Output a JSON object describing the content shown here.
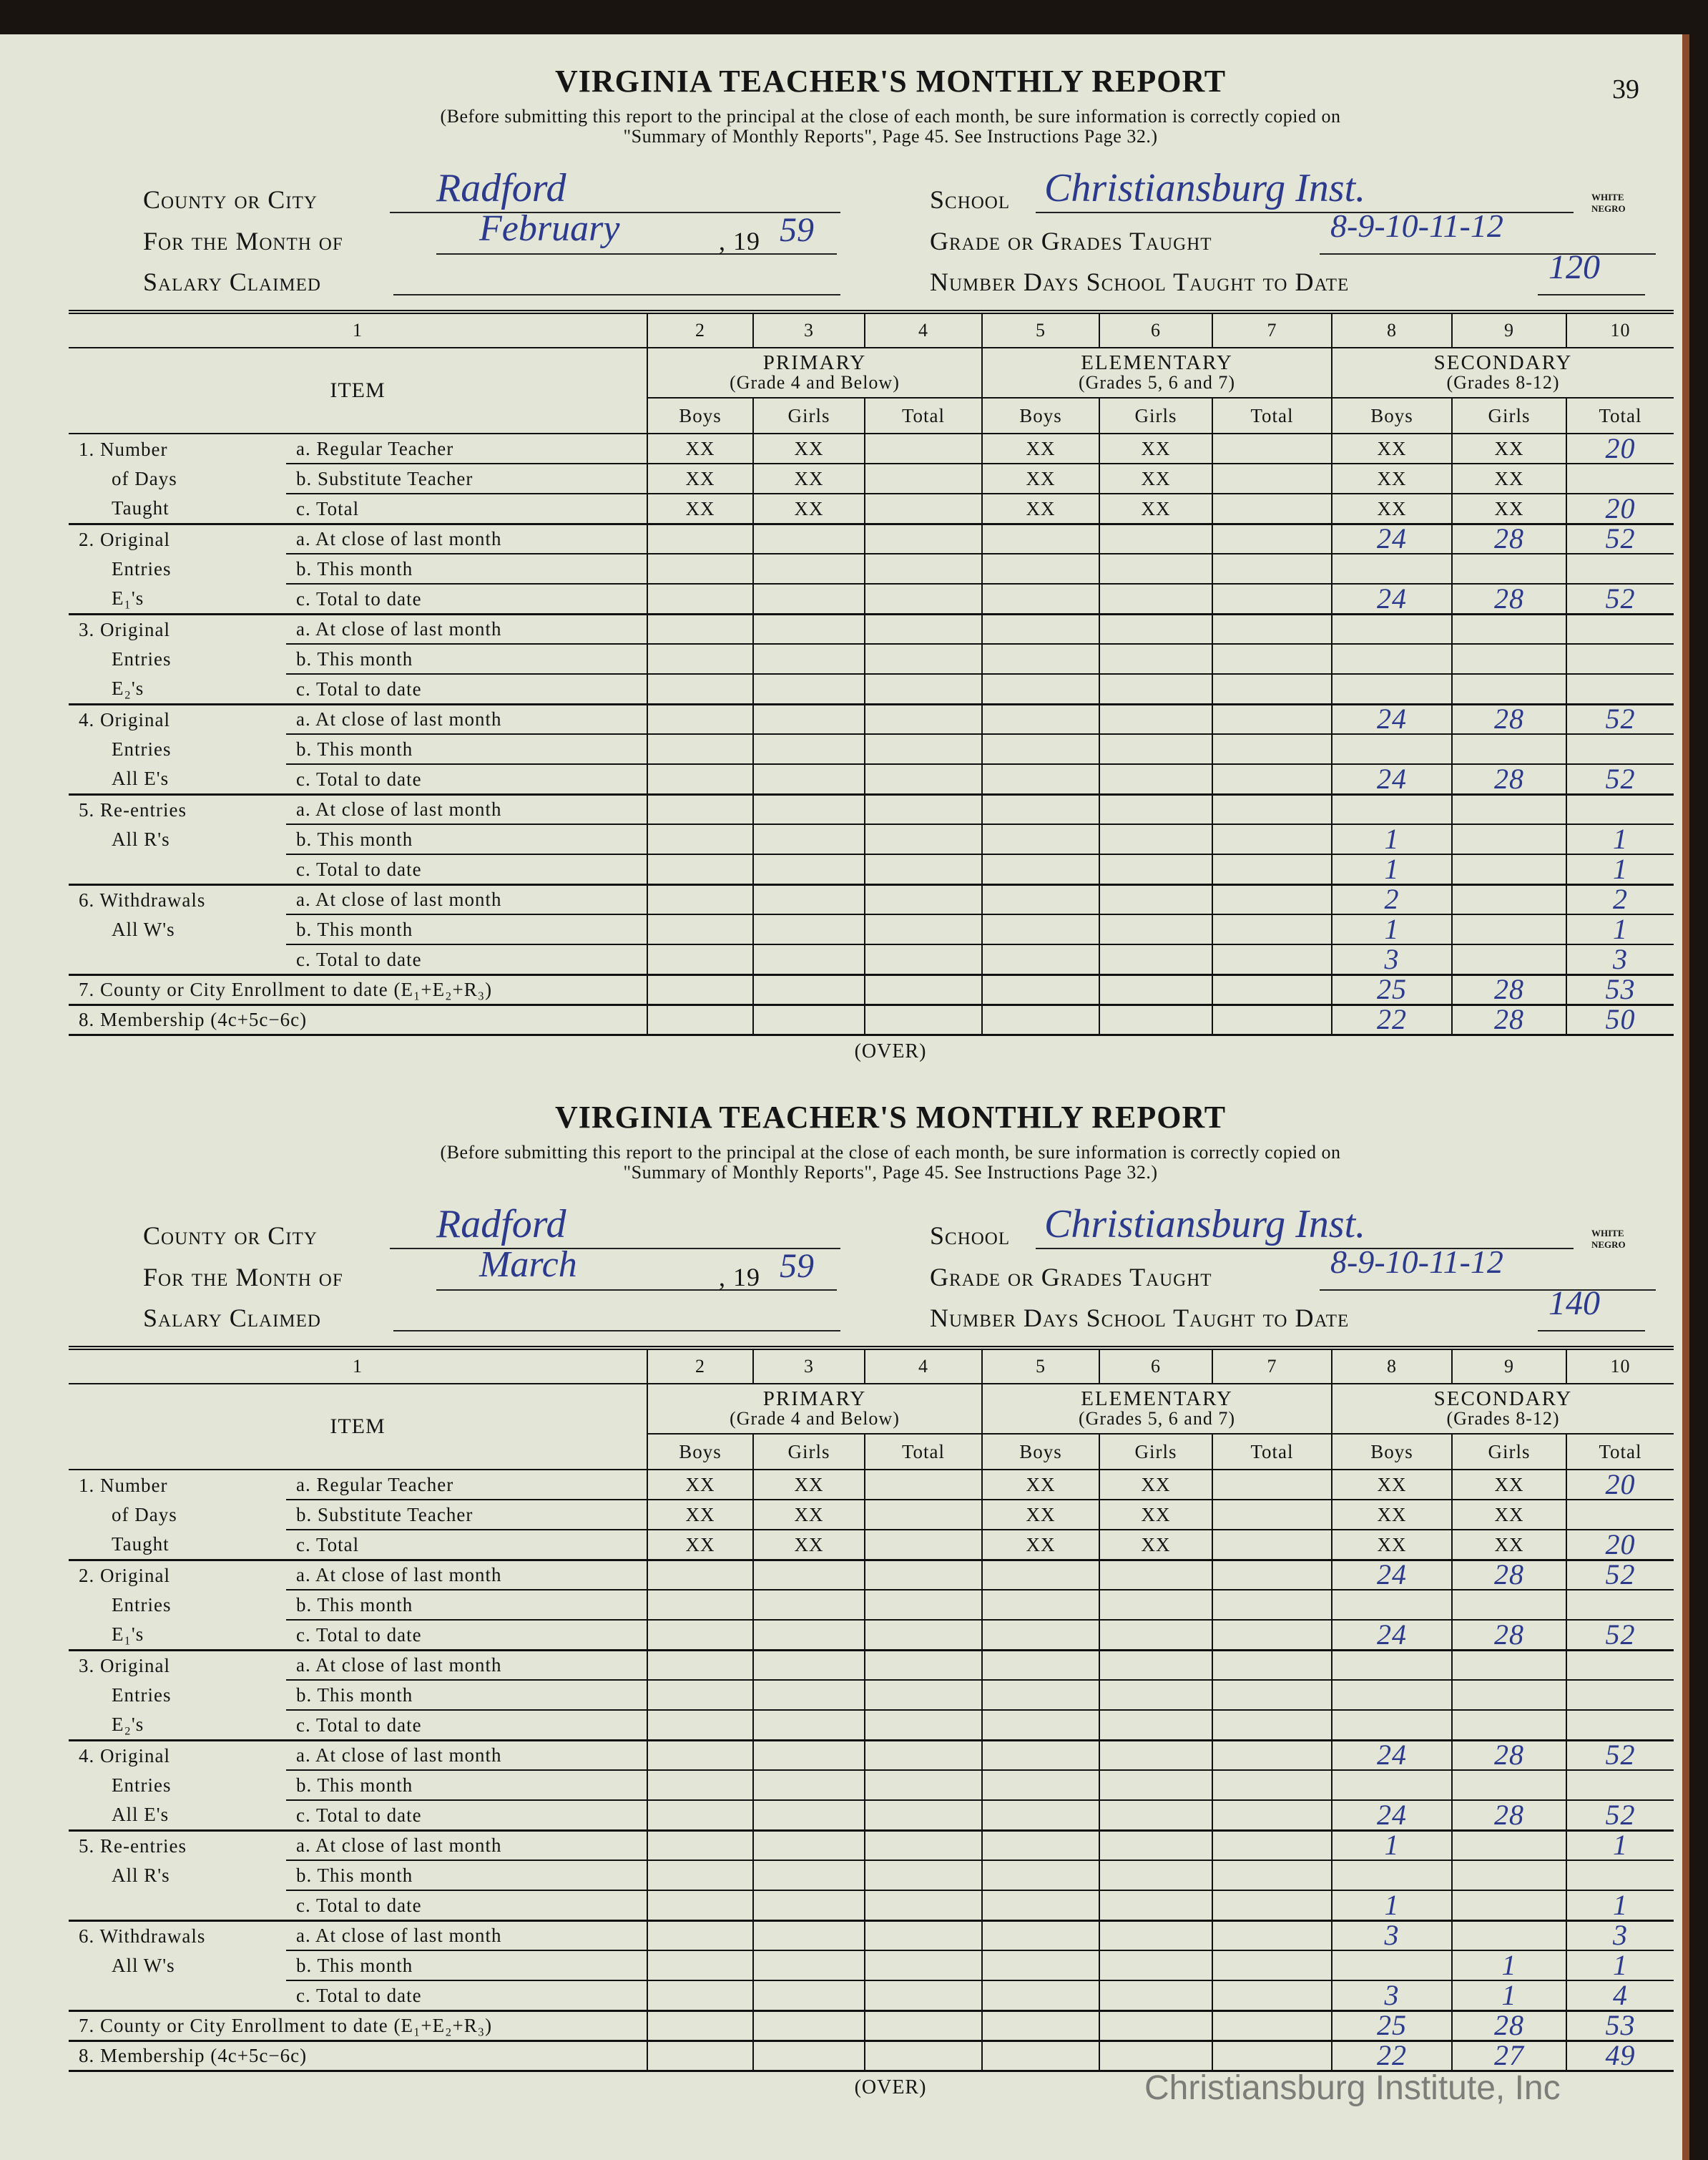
{
  "page_number": "39",
  "watermark": "Christiansburg Institute, Inc",
  "colors": {
    "paper": "#e3e6d6",
    "ink": "#2b3a8c",
    "binding": "#8a4a2c"
  },
  "column_numbers": [
    "1",
    "2",
    "3",
    "4",
    "5",
    "6",
    "7",
    "8",
    "9",
    "10"
  ],
  "item_header": "ITEM",
  "groups": [
    {
      "name": "PRIMARY",
      "sub": "(Grade 4 and Below)"
    },
    {
      "name": "ELEMENTARY",
      "sub": "(Grades 5, 6 and 7)"
    },
    {
      "name": "SECONDARY",
      "sub": "(Grades 8-12)"
    }
  ],
  "subheads": [
    "Boys",
    "Girls",
    "Total"
  ],
  "forms": [
    {
      "title": "VIRGINIA TEACHER'S MONTHLY REPORT",
      "note1": "(Before submitting this report to the principal at the close of each month, be sure information is correctly copied on",
      "note2": "\"Summary of Monthly Reports\", Page 45.  See Instructions Page 32.)",
      "county_label": "County or City",
      "county_value": "Radford",
      "month_label": "For the Month of",
      "month_value": "February",
      "year_prefix": ", 19",
      "year_value": "59",
      "salary_label": "Salary Claimed",
      "salary_value": "",
      "school_label": "School",
      "school_value": "Christiansburg Inst.",
      "race_options": [
        "WHITE",
        "NEGRO"
      ],
      "grades_label": "Grade or Grades Taught",
      "grades_value": "8-9-10-11-12",
      "days_label": "Number Days School Taught to Date",
      "days_value": "120",
      "over": "(OVER)",
      "rows": [
        {
          "group": "1. Number",
          "sub": "a. Regular Teacher",
          "cells": [
            "XX",
            "XX",
            "",
            "XX",
            "XX",
            "",
            "XX",
            "XX",
            "20"
          ]
        },
        {
          "group": "of Days",
          "sub": "b. Substitute Teacher",
          "cells": [
            "XX",
            "XX",
            "",
            "XX",
            "XX",
            "",
            "XX",
            "XX",
            ""
          ]
        },
        {
          "group": "Taught",
          "sub": "c. Total",
          "cells": [
            "XX",
            "XX",
            "",
            "XX",
            "XX",
            "",
            "XX",
            "XX",
            "20"
          ]
        },
        {
          "group": "2. Original",
          "sub": "a. At close of last month",
          "cells": [
            "",
            "",
            "",
            "",
            "",
            "",
            "24",
            "28",
            "52"
          ]
        },
        {
          "group": "Entries",
          "sub": "b. This month",
          "cells": [
            "",
            "",
            "",
            "",
            "",
            "",
            "",
            "",
            ""
          ]
        },
        {
          "group": "E₁'s",
          "sub": "c. Total to date",
          "cells": [
            "",
            "",
            "",
            "",
            "",
            "",
            "24",
            "28",
            "52"
          ]
        },
        {
          "group": "3. Original",
          "sub": "a. At close of last month",
          "cells": [
            "",
            "",
            "",
            "",
            "",
            "",
            "",
            "",
            ""
          ]
        },
        {
          "group": "Entries",
          "sub": "b. This month",
          "cells": [
            "",
            "",
            "",
            "",
            "",
            "",
            "",
            "",
            ""
          ]
        },
        {
          "group": "E₂'s",
          "sub": "c. Total to date",
          "cells": [
            "",
            "",
            "",
            "",
            "",
            "",
            "",
            "",
            ""
          ]
        },
        {
          "group": "4. Original",
          "sub": "a. At close of last month",
          "cells": [
            "",
            "",
            "",
            "",
            "",
            "",
            "24",
            "28",
            "52"
          ]
        },
        {
          "group": "Entries",
          "sub": "b. This month",
          "cells": [
            "",
            "",
            "",
            "",
            "",
            "",
            "",
            "",
            ""
          ]
        },
        {
          "group": "All E's",
          "sub": "c. Total to date",
          "cells": [
            "",
            "",
            "",
            "",
            "",
            "",
            "24",
            "28",
            "52"
          ]
        },
        {
          "group": "5. Re-entries",
          "sub": "a. At close of last month",
          "cells": [
            "",
            "",
            "",
            "",
            "",
            "",
            "",
            "",
            ""
          ]
        },
        {
          "group": "All R's",
          "sub": "b. This month",
          "cells": [
            "",
            "",
            "",
            "",
            "",
            "",
            "1",
            "",
            "1"
          ]
        },
        {
          "group": "",
          "sub": "c. Total to date",
          "cells": [
            "",
            "",
            "",
            "",
            "",
            "",
            "1",
            "",
            "1"
          ]
        },
        {
          "group": "6. Withdrawals",
          "sub": "a. At close of last month",
          "cells": [
            "",
            "",
            "",
            "",
            "",
            "",
            "2",
            "",
            "2"
          ]
        },
        {
          "group": "All W's",
          "sub": "b. This month",
          "cells": [
            "",
            "",
            "",
            "",
            "",
            "",
            "1",
            "",
            "1"
          ]
        },
        {
          "group": "",
          "sub": "c. Total to date",
          "cells": [
            "",
            "",
            "",
            "",
            "",
            "",
            "3",
            "",
            "3"
          ]
        },
        {
          "full": "7. County or City Enrollment to date (E₁+E₂+R₃)",
          "cells": [
            "",
            "",
            "",
            "",
            "",
            "",
            "25",
            "28",
            "53"
          ]
        },
        {
          "full": "8. Membership (4c+5c−6c)",
          "cells": [
            "",
            "",
            "",
            "",
            "",
            "",
            "22",
            "28",
            "50"
          ]
        }
      ]
    },
    {
      "title": "VIRGINIA TEACHER'S MONTHLY REPORT",
      "note1": "(Before submitting this report to the principal at the close of each month, be sure information is correctly copied on",
      "note2": "\"Summary of Monthly Reports\", Page 45.  See Instructions Page 32.)",
      "county_label": "County or City",
      "county_value": "Radford",
      "month_label": "For the Month of",
      "month_value": "March",
      "year_prefix": ", 19",
      "year_value": "59",
      "salary_label": "Salary Claimed",
      "salary_value": "",
      "school_label": "School",
      "school_value": "Christiansburg Inst.",
      "race_options": [
        "WHITE",
        "NEGRO"
      ],
      "grades_label": "Grade or Grades Taught",
      "grades_value": "8-9-10-11-12",
      "days_label": "Number Days School Taught to Date",
      "days_value": "140",
      "over": "(OVER)",
      "rows": [
        {
          "group": "1. Number",
          "sub": "a. Regular Teacher",
          "cells": [
            "XX",
            "XX",
            "",
            "XX",
            "XX",
            "",
            "XX",
            "XX",
            "20"
          ]
        },
        {
          "group": "of Days",
          "sub": "b. Substitute Teacher",
          "cells": [
            "XX",
            "XX",
            "",
            "XX",
            "XX",
            "",
            "XX",
            "XX",
            ""
          ]
        },
        {
          "group": "Taught",
          "sub": "c. Total",
          "cells": [
            "XX",
            "XX",
            "",
            "XX",
            "XX",
            "",
            "XX",
            "XX",
            "20"
          ]
        },
        {
          "group": "2. Original",
          "sub": "a. At close of last month",
          "cells": [
            "",
            "",
            "",
            "",
            "",
            "",
            "24",
            "28",
            "52"
          ]
        },
        {
          "group": "Entries",
          "sub": "b. This month",
          "cells": [
            "",
            "",
            "",
            "",
            "",
            "",
            "",
            "",
            ""
          ]
        },
        {
          "group": "E₁'s",
          "sub": "c. Total to date",
          "cells": [
            "",
            "",
            "",
            "",
            "",
            "",
            "24",
            "28",
            "52"
          ]
        },
        {
          "group": "3. Original",
          "sub": "a. At close of last month",
          "cells": [
            "",
            "",
            "",
            "",
            "",
            "",
            "",
            "",
            ""
          ]
        },
        {
          "group": "Entries",
          "sub": "b. This month",
          "cells": [
            "",
            "",
            "",
            "",
            "",
            "",
            "",
            "",
            ""
          ]
        },
        {
          "group": "E₂'s",
          "sub": "c. Total to date",
          "cells": [
            "",
            "",
            "",
            "",
            "",
            "",
            "",
            "",
            ""
          ]
        },
        {
          "group": "4. Original",
          "sub": "a. At close of last month",
          "cells": [
            "",
            "",
            "",
            "",
            "",
            "",
            "24",
            "28",
            "52"
          ]
        },
        {
          "group": "Entries",
          "sub": "b. This month",
          "cells": [
            "",
            "",
            "",
            "",
            "",
            "",
            "",
            "",
            ""
          ]
        },
        {
          "group": "All E's",
          "sub": "c. Total to date",
          "cells": [
            "",
            "",
            "",
            "",
            "",
            "",
            "24",
            "28",
            "52"
          ]
        },
        {
          "group": "5. Re-entries",
          "sub": "a. At close of last month",
          "cells": [
            "",
            "",
            "",
            "",
            "",
            "",
            "1",
            "",
            "1"
          ]
        },
        {
          "group": "All R's",
          "sub": "b. This month",
          "cells": [
            "",
            "",
            "",
            "",
            "",
            "",
            "",
            "",
            ""
          ]
        },
        {
          "group": "",
          "sub": "c. Total to date",
          "cells": [
            "",
            "",
            "",
            "",
            "",
            "",
            "1",
            "",
            "1"
          ]
        },
        {
          "group": "6. Withdrawals",
          "sub": "a. At close of last month",
          "cells": [
            "",
            "",
            "",
            "",
            "",
            "",
            "3",
            "",
            "3"
          ]
        },
        {
          "group": "All W's",
          "sub": "b. This month",
          "cells": [
            "",
            "",
            "",
            "",
            "",
            "",
            "",
            "1",
            "1"
          ]
        },
        {
          "group": "",
          "sub": "c. Total to date",
          "cells": [
            "",
            "",
            "",
            "",
            "",
            "",
            "3",
            "1",
            "4"
          ]
        },
        {
          "full": "7. County or City Enrollment to date (E₁+E₂+R₃)",
          "cells": [
            "",
            "",
            "",
            "",
            "",
            "",
            "25",
            "28",
            "53"
          ]
        },
        {
          "full": "8. Membership (4c+5c−6c)",
          "cells": [
            "",
            "",
            "",
            "",
            "",
            "",
            "22",
            "27",
            "49"
          ]
        }
      ]
    }
  ]
}
